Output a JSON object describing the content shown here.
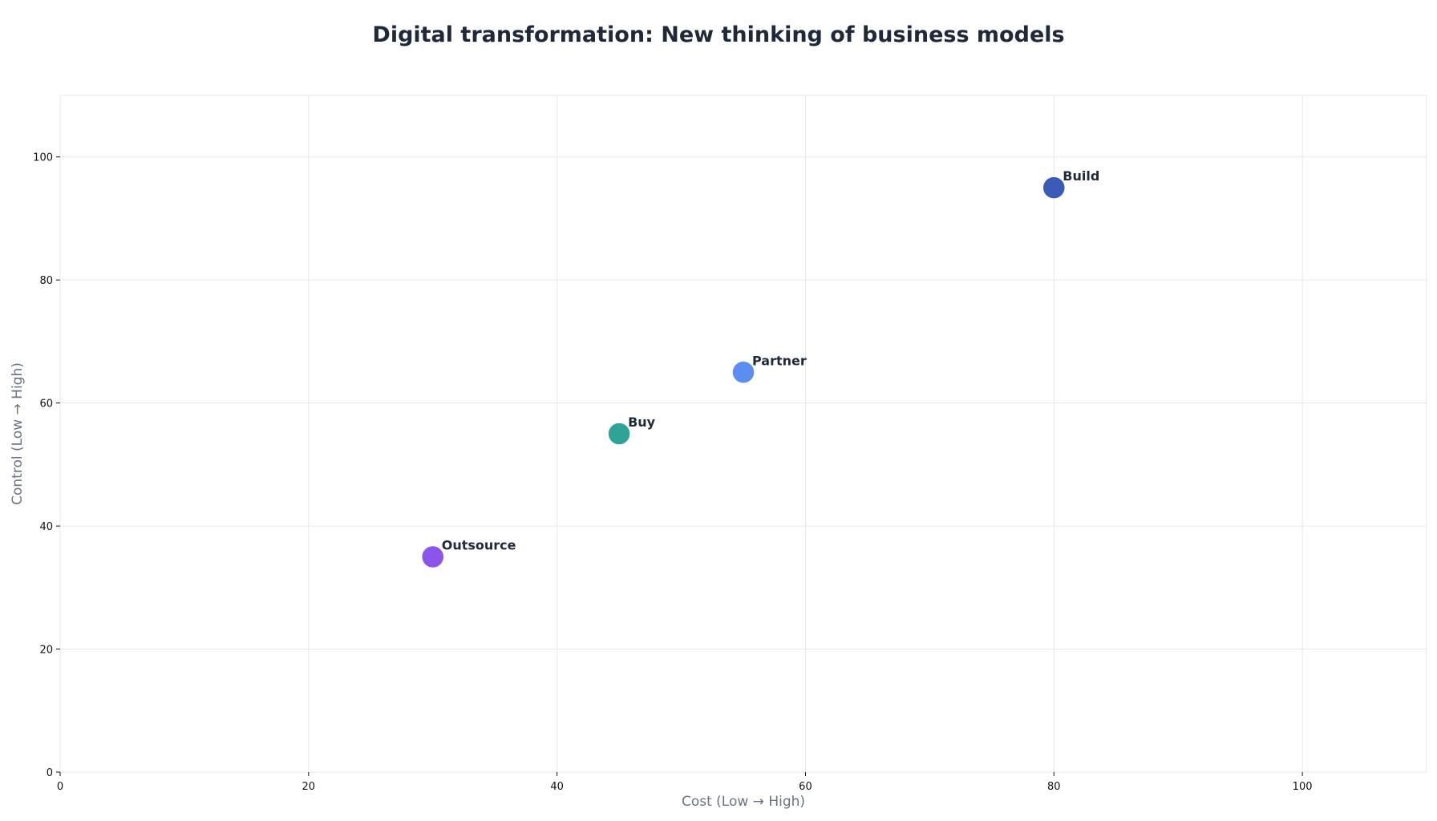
{
  "chart_data": {
    "type": "scatter",
    "title": "Digital transformation: New thinking of business models",
    "xlabel": "Cost (Low → High)",
    "ylabel": "Control (Low → High)",
    "xlim": [
      0,
      110
    ],
    "ylim": [
      0,
      110
    ],
    "xticks": [
      0,
      20,
      40,
      60,
      80,
      100
    ],
    "yticks": [
      0,
      20,
      40,
      60,
      80,
      100
    ],
    "grid": true,
    "points": [
      {
        "label": "Build",
        "x": 80,
        "y": 95,
        "color": "#3b5bb5"
      },
      {
        "label": "Partner",
        "x": 55,
        "y": 65,
        "color": "#5b8ef0"
      },
      {
        "label": "Buy",
        "x": 45,
        "y": 55,
        "color": "#2fa396"
      },
      {
        "label": "Outsource",
        "x": 30,
        "y": 35,
        "color": "#8b55ec"
      }
    ]
  }
}
